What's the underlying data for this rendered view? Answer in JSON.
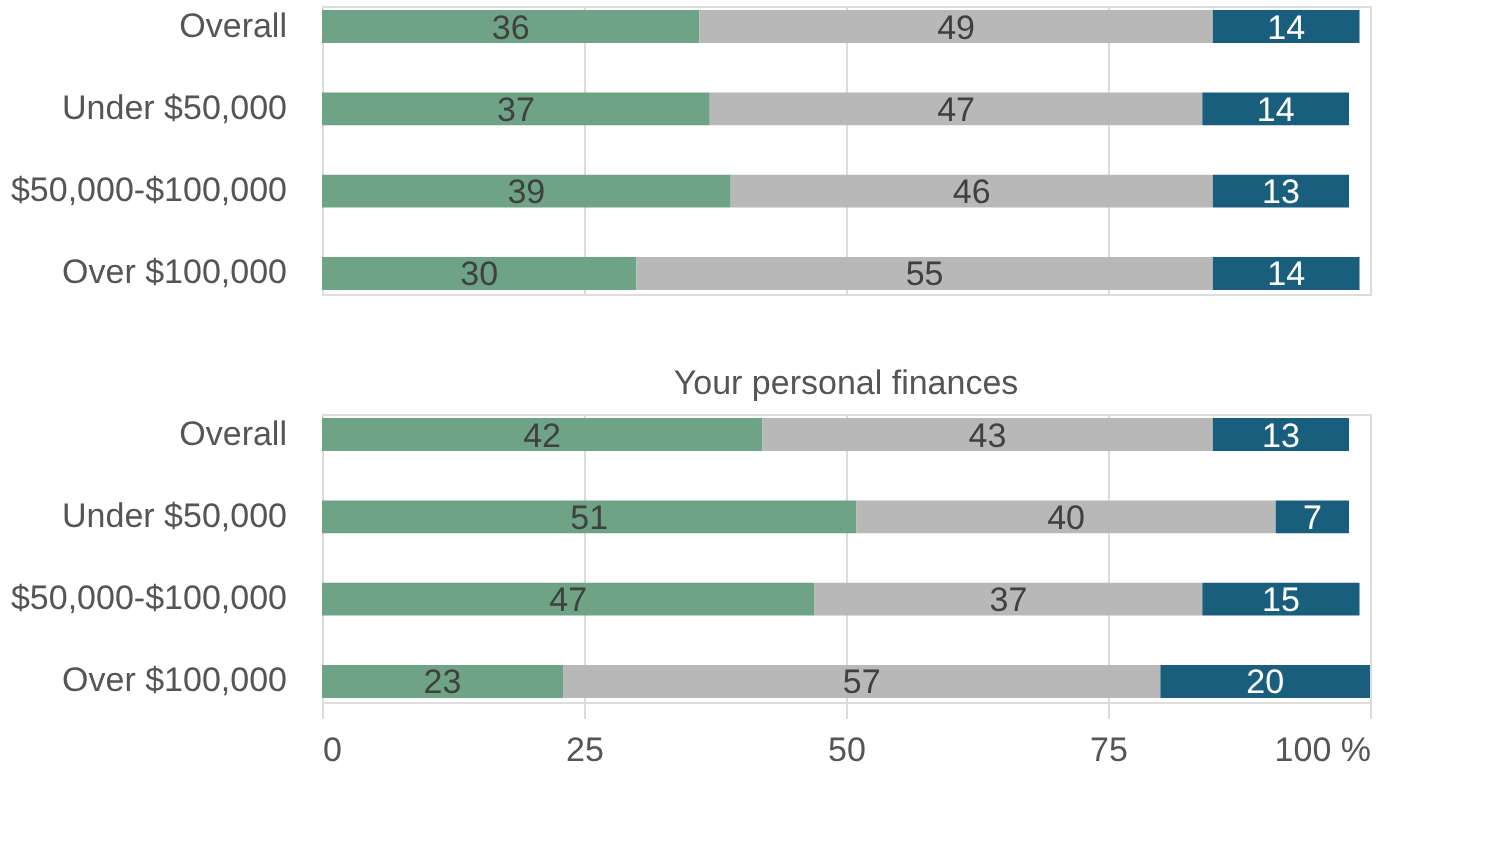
{
  "chart_data": [
    {
      "type": "bar",
      "orientation": "horizontal",
      "stacked": true,
      "categories": [
        "Overall",
        "Under $50,000",
        "$50,000-$100,000",
        "Over $100,000"
      ],
      "series": [
        {
          "color": "#6fa386",
          "values": [
            36,
            37,
            39,
            30
          ]
        },
        {
          "color": "#b8b8b8",
          "values": [
            49,
            47,
            46,
            55
          ]
        },
        {
          "color": "#1a5e7e",
          "values": [
            14,
            14,
            13,
            14
          ]
        }
      ],
      "xlim": [
        0,
        100
      ],
      "xticks": [
        0,
        25,
        50,
        75,
        100
      ],
      "grid": "x",
      "data_labels": true,
      "tick_labels": "y"
    },
    {
      "type": "bar",
      "orientation": "horizontal",
      "stacked": true,
      "title": "Your personal finances",
      "categories": [
        "Overall",
        "Under $50,000",
        "$50,000-$100,000",
        "Over $100,000"
      ],
      "series": [
        {
          "color": "#6fa386",
          "values": [
            42,
            51,
            47,
            23
          ]
        },
        {
          "color": "#b8b8b8",
          "values": [
            43,
            40,
            37,
            57
          ]
        },
        {
          "color": "#1a5e7e",
          "values": [
            13,
            7,
            15,
            20
          ]
        }
      ],
      "xlim": [
        0,
        100
      ],
      "xticks": [
        0,
        25,
        50,
        75,
        {
          "value": 100,
          "label": "100 %"
        }
      ],
      "grid": "x",
      "data_labels": true
    }
  ]
}
